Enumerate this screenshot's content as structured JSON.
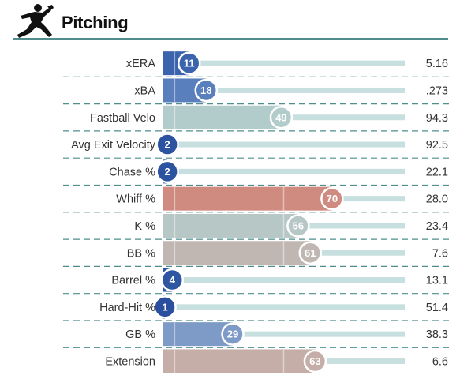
{
  "header": {
    "title": "Pitching",
    "icon": "pitcher-icon"
  },
  "chart_data": {
    "type": "bar",
    "orientation": "horizontal",
    "title": "Pitching",
    "xlim": [
      0,
      100
    ],
    "rows": [
      {
        "label": "xERA",
        "percentile": 11,
        "value": "5.16",
        "color": "#3b64ad"
      },
      {
        "label": "xBA",
        "percentile": 18,
        "value": ".273",
        "color": "#5a7fbd"
      },
      {
        "label": "Fastball Velo",
        "percentile": 49,
        "value": "94.3",
        "color": "#b2cccc"
      },
      {
        "label": "Avg Exit Velocity",
        "percentile": 2,
        "value": "92.5",
        "color": "#2b53a0"
      },
      {
        "label": "Chase %",
        "percentile": 2,
        "value": "22.1",
        "color": "#2b53a0"
      },
      {
        "label": "Whiff %",
        "percentile": 70,
        "value": "28.0",
        "color": "#d08b80"
      },
      {
        "label": "K %",
        "percentile": 56,
        "value": "23.4",
        "color": "#b7c7c6"
      },
      {
        "label": "BB %",
        "percentile": 61,
        "value": "7.6",
        "color": "#c0b7b3"
      },
      {
        "label": "Barrel %",
        "percentile": 4,
        "value": "13.1",
        "color": "#2e56a2"
      },
      {
        "label": "Hard-Hit %",
        "percentile": 1,
        "value": "51.4",
        "color": "#294f9e"
      },
      {
        "label": "GB %",
        "percentile": 29,
        "value": "38.3",
        "color": "#7e9ac7"
      },
      {
        "label": "Extension",
        "percentile": 63,
        "value": "6.6",
        "color": "#c5ada8"
      }
    ],
    "track_color": "#c7dfdf",
    "divider_color": "#4f8e8c"
  }
}
